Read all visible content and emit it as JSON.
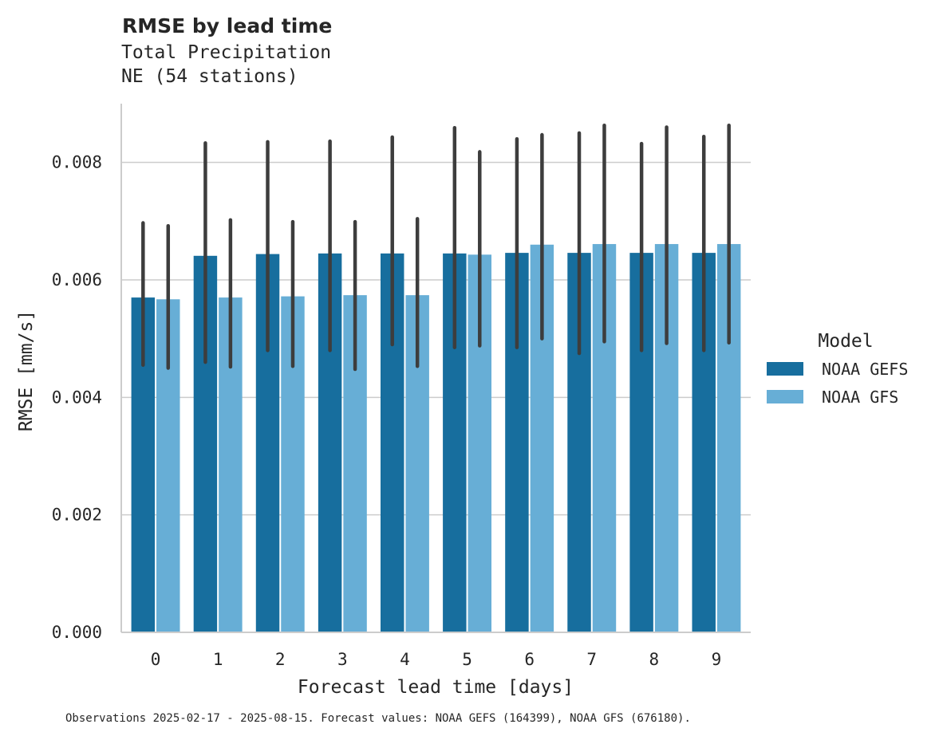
{
  "chart_data": {
    "type": "bar",
    "title": "RMSE by lead time",
    "subtitle_lines": [
      "Total Precipitation",
      "NE (54 stations)"
    ],
    "xlabel": "Forecast lead time [days]",
    "ylabel": "RMSE [mm/s]",
    "categories": [
      "0",
      "1",
      "2",
      "3",
      "4",
      "5",
      "6",
      "7",
      "8",
      "9"
    ],
    "ylim": [
      0,
      0.009
    ],
    "yticks": [
      0.0,
      0.002,
      0.004,
      0.006,
      0.008
    ],
    "ytick_labels": [
      "0.000",
      "0.002",
      "0.004",
      "0.006",
      "0.008"
    ],
    "grid": "horizontal",
    "legend": {
      "title": "Model",
      "placement": "right"
    },
    "series": [
      {
        "name": "NOAA GEFS",
        "color": "#176e9e",
        "values": [
          0.0057,
          0.00641,
          0.00644,
          0.00645,
          0.00645,
          0.00645,
          0.00646,
          0.00646,
          0.00646,
          0.00646
        ],
        "ci_low": [
          0.00455,
          0.0046,
          0.0048,
          0.0048,
          0.0049,
          0.00485,
          0.00485,
          0.00475,
          0.0048,
          0.0048
        ],
        "ci_high": [
          0.00697,
          0.00833,
          0.00835,
          0.00836,
          0.00843,
          0.00859,
          0.0084,
          0.0085,
          0.00832,
          0.00844
        ]
      },
      {
        "name": "NOAA GFS",
        "color": "#67aed6",
        "values": [
          0.00567,
          0.0057,
          0.00572,
          0.00574,
          0.00574,
          0.00643,
          0.0066,
          0.00661,
          0.00661,
          0.00661
        ],
        "ci_low": [
          0.0045,
          0.00452,
          0.00453,
          0.00448,
          0.00453,
          0.00488,
          0.005,
          0.00495,
          0.00492,
          0.00493
        ],
        "ci_high": [
          0.00692,
          0.00702,
          0.00699,
          0.00699,
          0.00704,
          0.00818,
          0.00847,
          0.00863,
          0.0086,
          0.00863
        ]
      }
    ],
    "caption": "Observations 2025-02-17 - 2025-08-15. Forecast values: NOAA GEFS (164399), NOAA GFS (676180)."
  }
}
